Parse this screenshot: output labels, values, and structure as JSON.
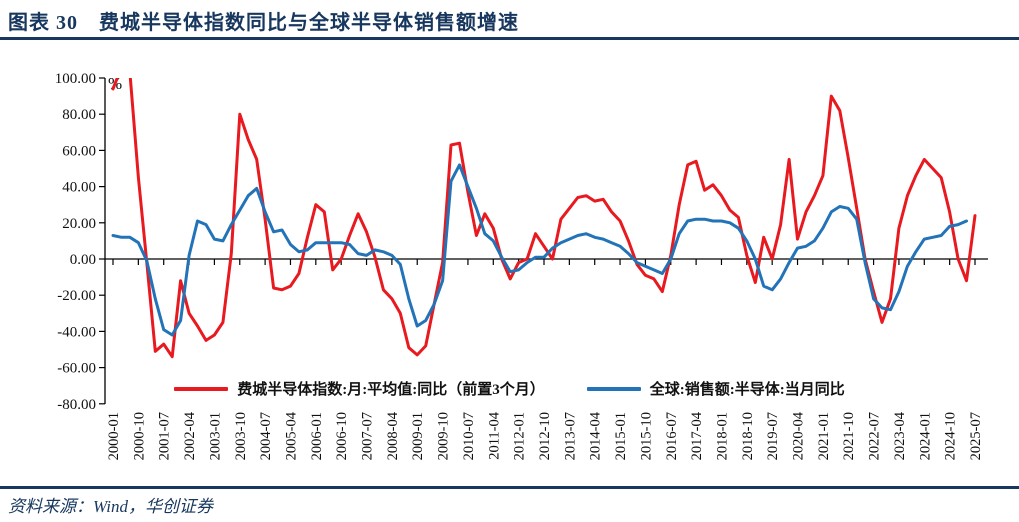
{
  "header": {
    "title": "图表 30　费城半导体指数同比与全球半导体销售额增速"
  },
  "footer": {
    "source": "资料来源：Wind，华创证券"
  },
  "chart_data": {
    "type": "line",
    "title": "费城半导体指数同比与全球半导体销售额增速",
    "unit_label": "%",
    "xlabel": "",
    "ylabel": "%",
    "ylim": [
      -80,
      100
    ],
    "grid": false,
    "legend_position": "bottom",
    "x_start": "2000-01",
    "x_step_months": 3,
    "x_tick_labels": [
      "2000-01",
      "2000-10",
      "2001-07",
      "2002-04",
      "2003-01",
      "2003-10",
      "2004-07",
      "2005-04",
      "2006-01",
      "2006-10",
      "2007-07",
      "2008-04",
      "2009-01",
      "2009-10",
      "2010-07",
      "2011-04",
      "2012-01",
      "2012-10",
      "2013-07",
      "2014-04",
      "2015-01",
      "2015-10",
      "2016-07",
      "2017-04",
      "2018-01",
      "2018-10",
      "2019-07",
      "2020-04",
      "2021-01",
      "2021-10",
      "2022-07",
      "2023-04",
      "2024-01",
      "2024-10",
      "2025-07"
    ],
    "y_tick_labels": [
      "100.00",
      "80.00",
      "60.00",
      "40.00",
      "20.00",
      "0.00",
      "-20.00",
      "-40.00",
      "-60.00",
      "-80.00"
    ],
    "series": [
      {
        "name": "费城半导体指数:月:平均值:同比（前置3个月）",
        "color": "#e8191f",
        "values": [
          94,
          106,
          103,
          45,
          -2,
          -51,
          -47,
          -54,
          -12,
          -30,
          -37,
          -45,
          -42,
          -35,
          3,
          80,
          66,
          55,
          22,
          -16,
          -17,
          -15,
          -8,
          12,
          30,
          26,
          -6,
          0,
          13,
          25,
          15,
          1,
          -17,
          -22,
          -30,
          -49,
          -53,
          -48,
          -25,
          -2,
          63,
          64,
          37,
          13,
          25,
          17,
          0,
          -11,
          -2,
          0,
          14,
          7,
          0,
          22,
          28,
          34,
          35,
          32,
          33,
          26,
          21,
          10,
          -3,
          -9,
          -11,
          -18,
          2,
          30,
          52,
          54,
          38,
          41,
          35,
          27,
          23,
          2,
          -13,
          12,
          0,
          19,
          55,
          11,
          26,
          35,
          46,
          90,
          82,
          56,
          28,
          0,
          -18,
          -35,
          -22,
          17,
          35,
          46,
          55,
          50,
          45,
          26,
          0,
          -12,
          24
        ]
      },
      {
        "name": "全球:销售额:半导体:当月同比",
        "color": "#2273b8",
        "values": [
          13,
          12,
          12,
          9,
          -1,
          -22,
          -39,
          -42,
          -34,
          2,
          21,
          19,
          11,
          10,
          19,
          27,
          35,
          39,
          26,
          15,
          16,
          8,
          4,
          5,
          9,
          9,
          9,
          9,
          8,
          3,
          2,
          5,
          4,
          2,
          -3,
          -22,
          -37,
          -34,
          -25,
          -12,
          43,
          52,
          40,
          28,
          14,
          10,
          1,
          -7,
          -6,
          -2,
          1,
          1,
          6,
          9,
          11,
          13,
          14,
          12,
          11,
          9,
          7,
          3,
          -2,
          -4,
          -6,
          -8,
          0,
          14,
          21,
          22,
          22,
          21,
          21,
          20,
          17,
          10,
          0,
          -15,
          -17,
          -11,
          -2,
          6,
          7,
          10,
          17,
          26,
          29,
          28,
          22,
          -2,
          -22,
          -27,
          -28,
          -18,
          -4,
          4,
          11,
          12,
          13,
          18,
          19,
          21,
          null
        ]
      }
    ],
    "colors": {
      "accent": "#17375e",
      "axis": "#000000"
    }
  }
}
